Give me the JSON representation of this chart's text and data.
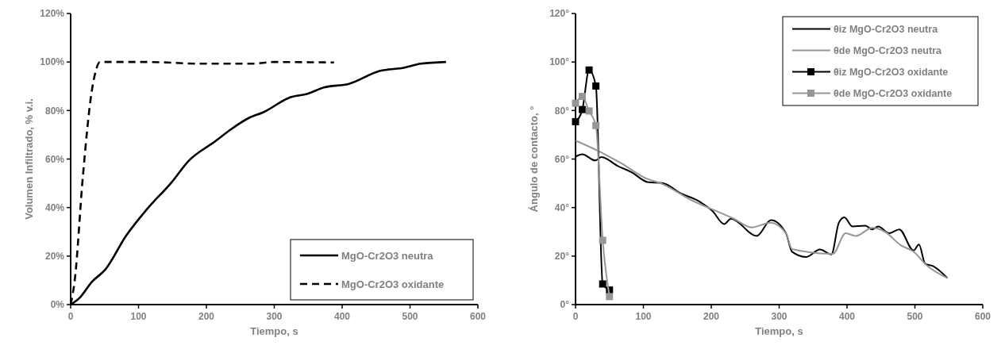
{
  "chart_data": [
    {
      "type": "line",
      "xlabel": "Tiempo, s",
      "ylabel": "Volumen Infiltrado, % v.i.",
      "xlim": [
        0,
        600
      ],
      "xticks": [
        0,
        100,
        200,
        300,
        400,
        500,
        600
      ],
      "ylim": [
        0,
        120
      ],
      "yticks": [
        {
          "value": 0,
          "label": "0%"
        },
        {
          "value": 20,
          "label": "20%"
        },
        {
          "value": 40,
          "label": "40%"
        },
        {
          "value": 60,
          "label": "60%"
        },
        {
          "value": 80,
          "label": "80%"
        },
        {
          "value": 100,
          "label": "100%"
        },
        {
          "value": 120,
          "label": "120%"
        }
      ],
      "grid": false,
      "legend": "bottom right",
      "marker": "none",
      "series": [
        {
          "name": "MgO-Cr2O3 neutra",
          "color": "#000000",
          "line_style": "solid",
          "x": [
            0,
            14,
            31,
            51,
            82,
            112,
            149,
            173,
            214,
            235,
            263,
            284,
            324,
            349,
            373,
            410,
            455,
            492,
            516,
            553
          ],
          "values": [
            0,
            3,
            9.3,
            14.4,
            28.5,
            39.2,
            50.5,
            59,
            67.5,
            72,
            77,
            79.3,
            85.5,
            86.9,
            89.5,
            91,
            96.3,
            97.7,
            99.3,
            100
          ]
        },
        {
          "name": "MgO-Cr2O3 oxidante",
          "color": "#000000",
          "line_style": "dashed",
          "x": [
            0,
            6,
            18,
            31,
            37,
            43,
            112,
            194,
            267,
            300,
            388
          ],
          "values": [
            0,
            10,
            52.8,
            87.8,
            96.3,
            100,
            100,
            99.3,
            99.3,
            100,
            99.8
          ]
        }
      ]
    },
    {
      "type": "line",
      "xlabel": "Tiempo, s",
      "ylabel": "Ángulo de contacto, °",
      "xlim": [
        0,
        600
      ],
      "xticks": [
        0,
        100,
        200,
        300,
        400,
        500,
        600
      ],
      "ylim": [
        0,
        120
      ],
      "yticks": [
        {
          "value": 0,
          "label": "0°"
        },
        {
          "value": 20,
          "label": "20°"
        },
        {
          "value": 40,
          "label": "40°"
        },
        {
          "value": 60,
          "label": "60°"
        },
        {
          "value": 80,
          "label": "80°"
        },
        {
          "value": 100,
          "label": "100°"
        },
        {
          "value": 120,
          "label": "120°"
        }
      ],
      "grid": false,
      "legend": "top right",
      "series": [
        {
          "name": "θiz MgO-Cr2O3 neutra",
          "color": "#000000",
          "marker": "none",
          "x": [
            0,
            10,
            29,
            38,
            63,
            83,
            106,
            129,
            156,
            179,
            202,
            219,
            229,
            267,
            288,
            310,
            319,
            340,
            360,
            377,
            388,
            396,
            408,
            427,
            437,
            446,
            462,
            477,
            498,
            506,
            515,
            527,
            548
          ],
          "values": [
            61,
            62,
            59.4,
            60.8,
            57,
            54.5,
            50.5,
            50,
            45.7,
            43,
            38.5,
            33.2,
            35.4,
            28.3,
            34.8,
            29.4,
            21.8,
            19.6,
            22.7,
            20.7,
            33.8,
            36,
            32.2,
            32.5,
            31,
            32.2,
            29.4,
            31,
            22.3,
            24.8,
            16.9,
            15.8,
            10.9
          ]
        },
        {
          "name": "θde MgO-Cr2O3 neutra",
          "color": "#969696",
          "marker": "none",
          "x": [
            0,
            33,
            67,
            102,
            129,
            171,
            202,
            233,
            260,
            287,
            310,
            319,
            379,
            398,
            413,
            437,
            456,
            479,
            498,
            517,
            548
          ],
          "values": [
            67.6,
            63.4,
            58.3,
            52.3,
            49.6,
            43,
            39.2,
            35.4,
            31.8,
            33.8,
            29.4,
            22.9,
            20.9,
            29.4,
            28.3,
            31.6,
            30,
            24.5,
            21.8,
            16.3,
            10.9
          ]
        },
        {
          "name": "θiz MgO-Cr2O3 oxidante",
          "color": "#000000",
          "marker": "square",
          "x": [
            0,
            10,
            20,
            30,
            40,
            50
          ],
          "values": [
            75.4,
            80.4,
            96.7,
            90.1,
            8.5,
            6
          ]
        },
        {
          "name": "θde MgO-Cr2O3 oxidante",
          "color": "#969696",
          "marker": "square",
          "x": [
            0,
            10,
            20,
            30,
            40,
            50
          ],
          "values": [
            83,
            85.8,
            79.8,
            73.8,
            26.5,
            3.3
          ]
        }
      ]
    }
  ]
}
